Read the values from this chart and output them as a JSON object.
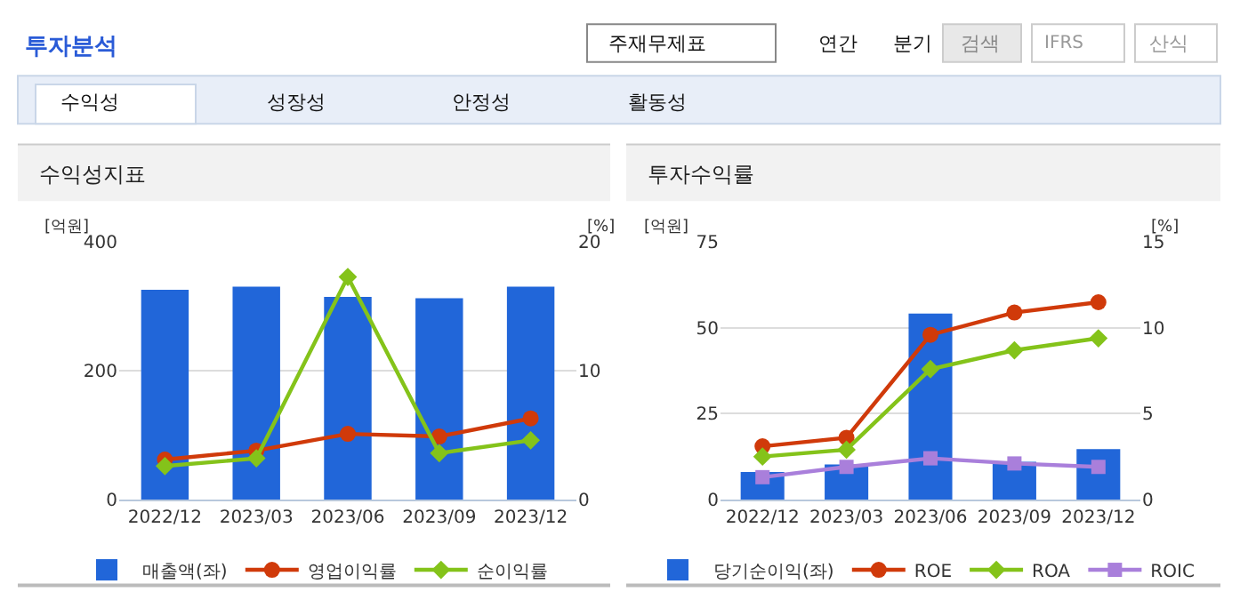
{
  "chart_data": [
    {
      "type": "bar",
      "title": "수익성지표",
      "ylabel": "[억원]",
      "y2label": "[%]",
      "annotations": [
        "투자분석",
        "주재무제표",
        "연간",
        "분기",
        "검색",
        "IFRS",
        "산식",
        "수익성",
        "성장성",
        "안정성",
        "활동성"
      ],
      "categories": [
        "2022/12",
        "2023/03",
        "2023/06",
        "2023/09",
        "2023/12"
      ],
      "series": [
        {
          "name": "매출액(좌)",
          "color": "#2166d9",
          "values": [
            326,
            331,
            315,
            313,
            331
          ]
        },
        {
          "name": "영업이익률",
          "type": "line",
          "axis": "y2",
          "marker": "circle",
          "color": "#d03a0a",
          "values": [
            3.1,
            3.8,
            5.1,
            4.9,
            6.3
          ]
        },
        {
          "name": "순이익률",
          "type": "line",
          "axis": "y2",
          "marker": "diamond",
          "color": "#84c31a",
          "values": [
            2.6,
            3.2,
            17.3,
            3.6,
            4.6
          ]
        }
      ],
      "ylim": [
        0,
        400
      ],
      "yticks": [
        0,
        200,
        400
      ],
      "y2lim": [
        0,
        20
      ],
      "y2ticks": [
        0,
        10,
        20
      ],
      "grid": "y",
      "legend": "bottom"
    },
    {
      "type": "bar",
      "title": "투자수익률",
      "ylabel": "[억원]",
      "y2label": "[%]",
      "categories": [
        "2022/12",
        "2023/03",
        "2023/06",
        "2023/09",
        "2023/12"
      ],
      "series": [
        {
          "name": "당기순이익(좌)",
          "color": "#2166d9",
          "values": [
            8,
            10.2,
            54.2,
            11,
            14.7
          ]
        },
        {
          "name": "ROE",
          "type": "line",
          "axis": "y2",
          "marker": "circle",
          "color": "#d03a0a",
          "values": [
            3.1,
            3.6,
            9.6,
            10.9,
            11.5
          ]
        },
        {
          "name": "ROA",
          "type": "line",
          "axis": "y2",
          "marker": "diamond",
          "color": "#84c31a",
          "values": [
            2.5,
            2.9,
            7.6,
            8.7,
            9.4
          ]
        },
        {
          "name": "ROIC",
          "type": "line",
          "axis": "y2",
          "marker": "square",
          "color": "#a97fdb",
          "values": [
            1.3,
            1.9,
            2.4,
            2.1,
            1.9
          ]
        }
      ],
      "ylim": [
        0,
        75
      ],
      "yticks": [
        0,
        25,
        50,
        75
      ],
      "y2lim": [
        0,
        15
      ],
      "y2ticks": [
        0,
        5,
        10,
        15
      ],
      "grid": "y",
      "legend": "bottom"
    }
  ]
}
